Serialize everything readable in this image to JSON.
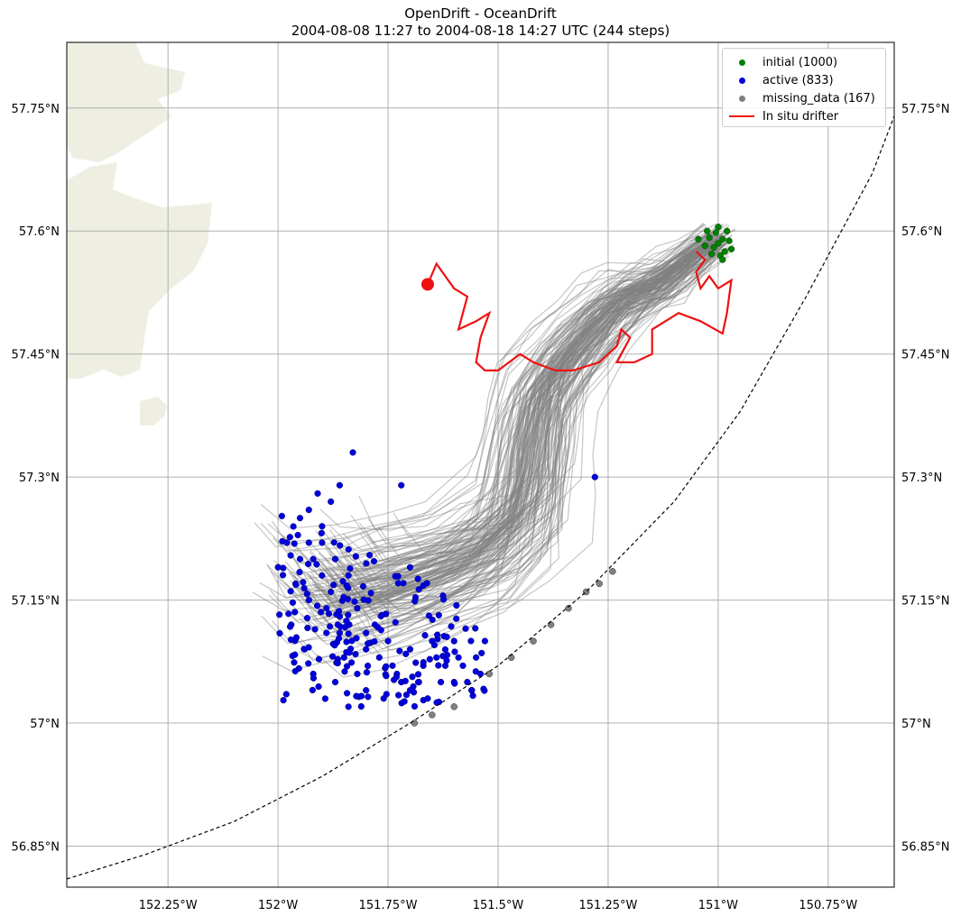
{
  "title": {
    "line1": "OpenDrift - OceanDrift",
    "line2": "2004-08-08 11:27 to 2004-08-18 14:27 UTC (244 steps)"
  },
  "chart_data": {
    "type": "scatter",
    "projection": "map",
    "xlim": [
      -152.48,
      -150.6
    ],
    "ylim": [
      56.8,
      57.83
    ],
    "grid": true,
    "legend_position": "top-right",
    "x_ticks": [
      -152.25,
      -152.0,
      -151.75,
      -151.5,
      -151.25,
      -151.0,
      -150.75
    ],
    "x_tick_labels": [
      "152.25°W",
      "152°W",
      "151.75°W",
      "151.5°W",
      "151.25°W",
      "151°W",
      "150.75°W"
    ],
    "y_ticks": [
      56.85,
      57.0,
      57.15,
      57.3,
      57.45,
      57.6,
      57.75
    ],
    "y_tick_labels": [
      "56.85°N",
      "57°N",
      "57.15°N",
      "57.3°N",
      "57.45°N",
      "57.6°N",
      "57.75°N"
    ],
    "colors": {
      "initial": "#008000",
      "active": "#0000dd",
      "missing_data": "#808080",
      "drifter": "#ee1111",
      "trajectories": "#808080",
      "land": "#eeeee2",
      "grid": "#b0b0b0"
    },
    "series": [
      {
        "name": "initial (1000)",
        "kind": "points",
        "center": [
          -150.99,
          57.585
        ],
        "points": [
          [
            -151.0,
            57.585
          ],
          [
            -150.99,
            57.59
          ],
          [
            -151.01,
            57.58
          ],
          [
            -150.985,
            57.575
          ],
          [
            -151.005,
            57.598
          ],
          [
            -150.975,
            57.588
          ],
          [
            -151.02,
            57.592
          ],
          [
            -150.995,
            57.57
          ],
          [
            -151.015,
            57.572
          ],
          [
            -150.98,
            57.6
          ],
          [
            -151.03,
            57.582
          ],
          [
            -150.97,
            57.578
          ],
          [
            -151.0,
            57.605
          ],
          [
            -151.045,
            57.59
          ],
          [
            -150.99,
            57.565
          ],
          [
            -151.025,
            57.6
          ]
        ]
      },
      {
        "name": "active (833)",
        "kind": "points",
        "points": [
          [
            -151.98,
            57.22
          ],
          [
            -151.95,
            57.25
          ],
          [
            -151.92,
            57.2
          ],
          [
            -151.9,
            57.18
          ],
          [
            -151.93,
            57.15
          ],
          [
            -151.88,
            57.16
          ],
          [
            -151.86,
            57.13
          ],
          [
            -151.89,
            57.11
          ],
          [
            -151.85,
            57.08
          ],
          [
            -151.82,
            57.06
          ],
          [
            -151.8,
            57.04
          ],
          [
            -151.76,
            57.03
          ],
          [
            -151.72,
            57.05
          ],
          [
            -151.7,
            57.04
          ],
          [
            -151.66,
            57.03
          ],
          [
            -151.63,
            57.05
          ],
          [
            -151.6,
            57.05
          ],
          [
            -151.58,
            57.07
          ],
          [
            -151.55,
            57.08
          ],
          [
            -151.6,
            57.1
          ],
          [
            -151.65,
            57.1
          ],
          [
            -151.7,
            57.09
          ],
          [
            -151.75,
            57.1
          ],
          [
            -151.78,
            57.12
          ],
          [
            -151.82,
            57.14
          ],
          [
            -151.84,
            57.18
          ],
          [
            -151.9,
            57.24
          ],
          [
            -151.93,
            57.26
          ],
          [
            -151.86,
            57.29
          ],
          [
            -151.88,
            57.27
          ],
          [
            -151.91,
            57.28
          ],
          [
            -152.0,
            57.19
          ],
          [
            -151.97,
            57.12
          ],
          [
            -151.94,
            57.09
          ],
          [
            -151.92,
            57.06
          ],
          [
            -151.87,
            57.05
          ],
          [
            -151.84,
            57.02
          ],
          [
            -151.83,
            57.33
          ],
          [
            -151.72,
            57.29
          ],
          [
            -151.7,
            57.19
          ],
          [
            -151.28,
            57.3
          ],
          [
            -151.53,
            57.1
          ],
          [
            -151.56,
            57.04
          ],
          [
            -151.62,
            57.07
          ],
          [
            -151.67,
            57.07
          ],
          [
            -151.74,
            57.07
          ],
          [
            -151.8,
            57.09
          ],
          [
            -151.95,
            57.2
          ],
          [
            -151.9,
            57.22
          ],
          [
            -151.87,
            57.2
          ],
          [
            -151.93,
            57.22
          ],
          [
            -151.96,
            57.17
          ],
          [
            -151.89,
            57.14
          ],
          [
            -151.86,
            57.11
          ],
          [
            -151.8,
            57.11
          ],
          [
            -151.77,
            57.08
          ],
          [
            -151.73,
            57.06
          ],
          [
            -151.68,
            57.05
          ],
          [
            -151.64,
            57.08
          ],
          [
            -151.59,
            57.08
          ],
          [
            -151.57,
            57.05
          ],
          [
            -151.54,
            57.06
          ]
        ],
        "count_shown_as_cloud": 833
      },
      {
        "name": "missing_data (167)",
        "kind": "points",
        "points": [
          [
            -151.69,
            57.0
          ],
          [
            -151.65,
            57.01
          ],
          [
            -151.6,
            57.02
          ],
          [
            -151.56,
            57.04
          ],
          [
            -151.52,
            57.06
          ],
          [
            -151.47,
            57.08
          ],
          [
            -151.42,
            57.1
          ],
          [
            -151.38,
            57.12
          ],
          [
            -151.34,
            57.14
          ],
          [
            -151.3,
            57.16
          ],
          [
            -151.27,
            57.17
          ],
          [
            -151.24,
            57.185
          ]
        ]
      },
      {
        "name": "In situ drifter",
        "kind": "line",
        "points": [
          [
            -151.66,
            57.535
          ],
          [
            -151.64,
            57.56
          ],
          [
            -151.6,
            57.53
          ],
          [
            -151.57,
            57.52
          ],
          [
            -151.58,
            57.5
          ],
          [
            -151.59,
            57.48
          ],
          [
            -151.55,
            57.49
          ],
          [
            -151.52,
            57.5
          ],
          [
            -151.54,
            57.47
          ],
          [
            -151.55,
            57.44
          ],
          [
            -151.53,
            57.43
          ],
          [
            -151.5,
            57.43
          ],
          [
            -151.45,
            57.45
          ],
          [
            -151.42,
            57.44
          ],
          [
            -151.37,
            57.43
          ],
          [
            -151.33,
            57.43
          ],
          [
            -151.27,
            57.44
          ],
          [
            -151.23,
            57.46
          ],
          [
            -151.22,
            57.48
          ],
          [
            -151.2,
            57.47
          ],
          [
            -151.23,
            57.44
          ],
          [
            -151.19,
            57.44
          ],
          [
            -151.15,
            57.45
          ],
          [
            -151.15,
            57.48
          ],
          [
            -151.12,
            57.49
          ],
          [
            -151.09,
            57.5
          ],
          [
            -151.04,
            57.49
          ],
          [
            -150.99,
            57.475
          ],
          [
            -150.98,
            57.5
          ],
          [
            -150.97,
            57.54
          ],
          [
            -151.0,
            57.53
          ],
          [
            -151.02,
            57.545
          ],
          [
            -151.04,
            57.53
          ],
          [
            -151.05,
            57.55
          ],
          [
            -151.03,
            57.565
          ],
          [
            -151.05,
            57.575
          ]
        ]
      }
    ],
    "trajectory_cloud": {
      "name": "trajectories",
      "start": [
        -150.99,
        57.585
      ],
      "path_hint": [
        [
          -151.0,
          57.59
        ],
        [
          -151.05,
          57.57
        ],
        [
          -151.1,
          57.55
        ],
        [
          -151.15,
          57.53
        ],
        [
          -151.2,
          57.52
        ],
        [
          -151.25,
          57.5
        ],
        [
          -151.3,
          57.47
        ],
        [
          -151.35,
          57.44
        ],
        [
          -151.4,
          57.4
        ],
        [
          -151.42,
          57.35
        ],
        [
          -151.43,
          57.3
        ],
        [
          -151.45,
          57.25
        ],
        [
          -151.55,
          57.2
        ],
        [
          -151.65,
          57.18
        ],
        [
          -151.75,
          57.16
        ],
        [
          -151.85,
          57.15
        ],
        [
          -151.9,
          57.18
        ]
      ]
    },
    "boundary_arc": {
      "style": "dashed",
      "color": "#000000"
    }
  }
}
